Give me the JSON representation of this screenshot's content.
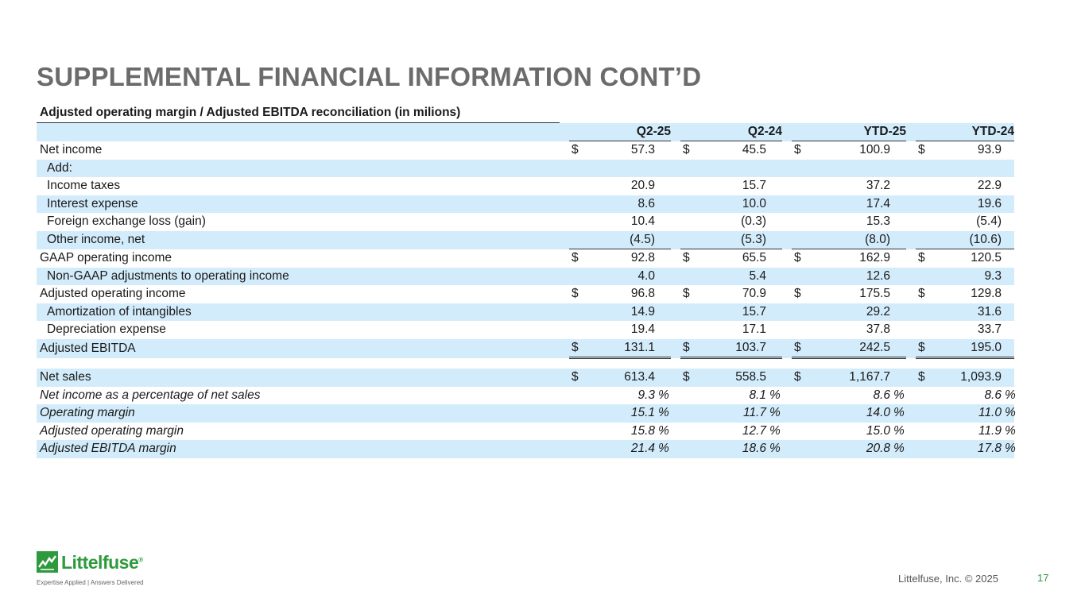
{
  "title": "SUPPLEMENTAL FINANCIAL INFORMATION CONT’D",
  "table": {
    "caption": "Adjusted operating margin / Adjusted EBITDA reconciliation (in milions)",
    "columns": [
      "Q2-25",
      "Q2-24",
      "YTD-25",
      "YTD-24"
    ],
    "rows": [
      {
        "label": "Net income",
        "values": [
          "57.3",
          "45.5",
          "100.9",
          "93.9"
        ],
        "dollar": "$"
      },
      {
        "label": "Add:",
        "values": [
          "",
          "",
          "",
          ""
        ]
      },
      {
        "label": "Income taxes",
        "values": [
          "20.9",
          "15.7",
          "37.2",
          "22.9"
        ]
      },
      {
        "label": "Interest expense",
        "values": [
          "8.6",
          "10.0",
          "17.4",
          "19.6"
        ]
      },
      {
        "label": "Foreign exchange loss (gain)",
        "values": [
          "10.4",
          "(0.3)",
          "15.3",
          "(5.4)"
        ]
      },
      {
        "label": "Other income, net",
        "values": [
          "(4.5)",
          "(5.3)",
          "(8.0)",
          "(10.6)"
        ]
      },
      {
        "label": "GAAP operating income",
        "values": [
          "92.8",
          "65.5",
          "162.9",
          "120.5"
        ],
        "dollar": "$"
      },
      {
        "label": "Non-GAAP adjustments to operating income",
        "values": [
          "4.0",
          "5.4",
          "12.6",
          "9.3"
        ]
      },
      {
        "label": "Adjusted operating income",
        "values": [
          "96.8",
          "70.9",
          "175.5",
          "129.8"
        ],
        "dollar": "$"
      },
      {
        "label": "Amortization of intangibles",
        "values": [
          "14.9",
          "15.7",
          "29.2",
          "31.6"
        ]
      },
      {
        "label": "Depreciation expense",
        "values": [
          "19.4",
          "17.1",
          "37.8",
          "33.7"
        ]
      },
      {
        "label": "Adjusted EBITDA",
        "values": [
          "131.1",
          "103.7",
          "242.5",
          "195.0"
        ],
        "dollar": "$"
      }
    ],
    "sales_rows": [
      {
        "label": "Net sales",
        "values": [
          "613.4",
          "558.5",
          "1,167.7",
          "1,093.9"
        ],
        "dollar": "$"
      },
      {
        "label": "Net income as a percentage of net sales",
        "values": [
          "9.3",
          "8.1",
          "8.6",
          "8.6"
        ],
        "suffix": "%"
      },
      {
        "label": "Operating margin",
        "values": [
          "15.1",
          "11.7",
          "14.0",
          "11.0"
        ],
        "suffix": "%"
      },
      {
        "label": "Adjusted operating margin",
        "values": [
          "15.8",
          "12.7",
          "15.0",
          "11.9"
        ],
        "suffix": "%"
      },
      {
        "label": "Adjusted EBITDA margin",
        "values": [
          "21.4",
          "18.6",
          "20.8",
          "17.8"
        ],
        "suffix": "%"
      }
    ]
  },
  "logo": {
    "name": "Littelfuse",
    "registered": "®",
    "tagline": "Expertise Applied | Answers Delivered"
  },
  "footer": {
    "copyright": "Littelfuse, Inc. © 2025",
    "page_number": "17"
  },
  "colors": {
    "row_shade": "#d3ecfb",
    "brand_green": "#2e9a3c",
    "title_gray": "#6b6b6b"
  }
}
